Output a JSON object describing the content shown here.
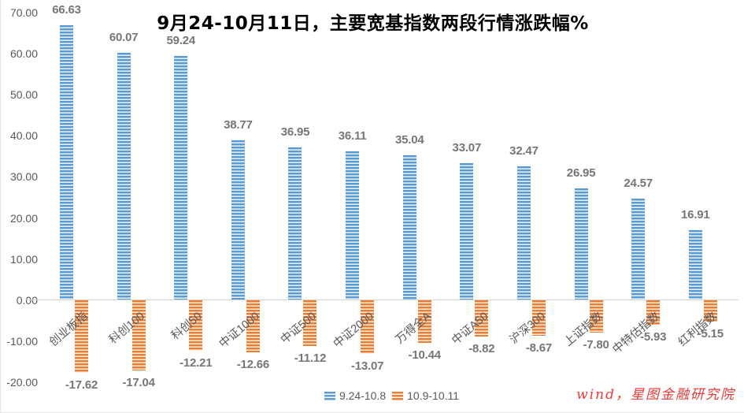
{
  "source_note": "wind，星图金融研究院",
  "colors": {
    "series_blue": "#5B9BD5",
    "series_orange": "#ED7D31",
    "axis_text": "#595959",
    "data_label": "#767676",
    "title_text": "#000000",
    "watermark_red": "#e93a35",
    "gridline": "#d4d4d4"
  },
  "chart_data": {
    "type": "bar",
    "title": "9月24-10月11日，主要宽基指数两段行情涨跌幅%",
    "categories": [
      "创业板指",
      "科创100",
      "科创50",
      "中证1000",
      "中证500",
      "中证2000",
      "万得全A",
      "中证A50",
      "沪深300",
      "上证指数",
      "中特估指数",
      "红利指数"
    ],
    "series": [
      {
        "name": "9.24-10.8",
        "color": "#5B9BD5",
        "values": [
          66.63,
          60.07,
          59.24,
          38.77,
          36.95,
          36.11,
          35.04,
          33.07,
          32.47,
          26.95,
          24.57,
          16.91
        ]
      },
      {
        "name": "10.9-10.11",
        "color": "#ED7D31",
        "values": [
          -17.62,
          -17.04,
          -12.21,
          -12.66,
          -11.12,
          -13.07,
          -10.44,
          -8.82,
          -8.67,
          -7.8,
          -5.93,
          -5.15
        ]
      }
    ],
    "ylim": [
      -20,
      70
    ],
    "ytick_step": 10,
    "ytick_format": "0.00",
    "xlabel": "",
    "ylabel": "",
    "grid": false,
    "data_labels": true,
    "legend_position": "bottom",
    "category_label_rotation_deg": -40
  }
}
